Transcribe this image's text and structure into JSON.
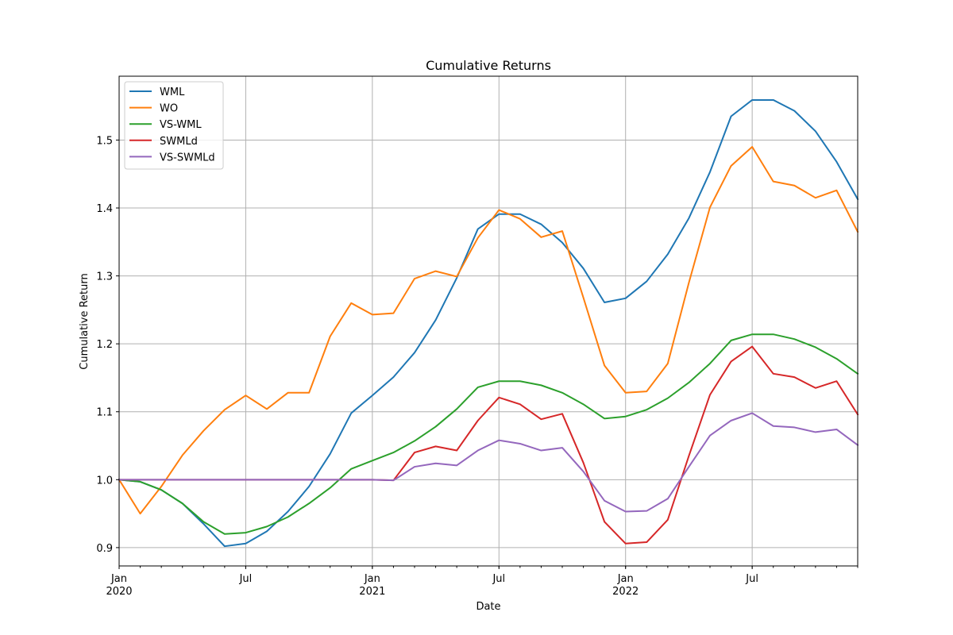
{
  "chart_data": {
    "type": "line",
    "title": "Cumulative Returns",
    "xlabel": "Date",
    "ylabel": "Cumulative Return",
    "x": [
      "2020-01",
      "2020-02",
      "2020-03",
      "2020-04",
      "2020-05",
      "2020-06",
      "2020-07",
      "2020-08",
      "2020-09",
      "2020-10",
      "2020-11",
      "2020-12",
      "2021-01",
      "2021-02",
      "2021-03",
      "2021-04",
      "2021-05",
      "2021-06",
      "2021-07",
      "2021-08",
      "2021-09",
      "2021-10",
      "2021-11",
      "2021-12",
      "2022-01",
      "2022-02",
      "2022-03",
      "2022-04",
      "2022-05",
      "2022-06",
      "2022-07",
      "2022-08",
      "2022-09",
      "2022-10",
      "2022-11",
      "2022-12"
    ],
    "xlim": [
      "2020-01",
      "2022-12"
    ],
    "ylim": [
      0.873,
      1.594
    ],
    "x_ticks": [
      {
        "label": "Jan",
        "year": "2020",
        "x": "2020-01"
      },
      {
        "label": "Jul",
        "year": "",
        "x": "2020-07"
      },
      {
        "label": "Jan",
        "year": "2021",
        "x": "2021-01"
      },
      {
        "label": "Jul",
        "year": "",
        "x": "2021-07"
      },
      {
        "label": "Jan",
        "year": "2022",
        "x": "2022-01"
      },
      {
        "label": "Jul",
        "year": "",
        "x": "2022-07"
      }
    ],
    "y_ticks": [
      "0.9",
      "1.0",
      "1.1",
      "1.2",
      "1.3",
      "1.4",
      "1.5"
    ],
    "grid": true,
    "legend_position": "upper-left",
    "series": [
      {
        "name": "WML",
        "color": "#1f77b4",
        "values": [
          1.0,
          0.997,
          0.985,
          0.965,
          0.935,
          0.902,
          0.906,
          0.924,
          0.953,
          0.99,
          1.038,
          1.098,
          1.124,
          1.151,
          1.187,
          1.235,
          1.297,
          1.369,
          1.391,
          1.391,
          1.376,
          1.349,
          1.311,
          1.261,
          1.267,
          1.292,
          1.332,
          1.385,
          1.453,
          1.535,
          1.559,
          1.559,
          1.543,
          1.513,
          1.468,
          1.413
        ]
      },
      {
        "name": "WO",
        "color": "#ff7f0e",
        "values": [
          1.0,
          0.95,
          0.99,
          1.036,
          1.072,
          1.103,
          1.124,
          1.104,
          1.128,
          1.128,
          1.211,
          1.26,
          1.243,
          1.245,
          1.296,
          1.307,
          1.299,
          1.356,
          1.397,
          1.384,
          1.357,
          1.366,
          1.268,
          1.168,
          1.128,
          1.13,
          1.171,
          1.29,
          1.401,
          1.462,
          1.49,
          1.439,
          1.433,
          1.415,
          1.426,
          1.365
        ]
      },
      {
        "name": "VS-WML",
        "color": "#2ca02c",
        "values": [
          1.0,
          0.997,
          0.985,
          0.965,
          0.938,
          0.92,
          0.922,
          0.931,
          0.945,
          0.965,
          0.988,
          1.016,
          1.028,
          1.04,
          1.057,
          1.078,
          1.104,
          1.136,
          1.145,
          1.145,
          1.139,
          1.128,
          1.111,
          1.09,
          1.093,
          1.103,
          1.12,
          1.143,
          1.171,
          1.205,
          1.214,
          1.214,
          1.207,
          1.195,
          1.178,
          1.156
        ]
      },
      {
        "name": "SWMLd",
        "color": "#d62728",
        "values": [
          1.0,
          1.0,
          1.0,
          1.0,
          1.0,
          1.0,
          1.0,
          1.0,
          1.0,
          1.0,
          1.0,
          1.0,
          1.0,
          0.999,
          1.04,
          1.049,
          1.043,
          1.087,
          1.121,
          1.111,
          1.089,
          1.097,
          1.025,
          0.938,
          0.906,
          0.908,
          0.941,
          1.035,
          1.125,
          1.174,
          1.196,
          1.156,
          1.151,
          1.135,
          1.145,
          1.096
        ]
      },
      {
        "name": "VS-SWMLd",
        "color": "#9467bd",
        "values": [
          1.0,
          1.0,
          1.0,
          1.0,
          1.0,
          1.0,
          1.0,
          1.0,
          1.0,
          1.0,
          1.0,
          1.0,
          1.0,
          0.999,
          1.019,
          1.024,
          1.021,
          1.043,
          1.058,
          1.053,
          1.043,
          1.047,
          1.012,
          0.969,
          0.953,
          0.954,
          0.972,
          1.019,
          1.065,
          1.087,
          1.098,
          1.079,
          1.077,
          1.07,
          1.074,
          1.051
        ]
      }
    ]
  }
}
